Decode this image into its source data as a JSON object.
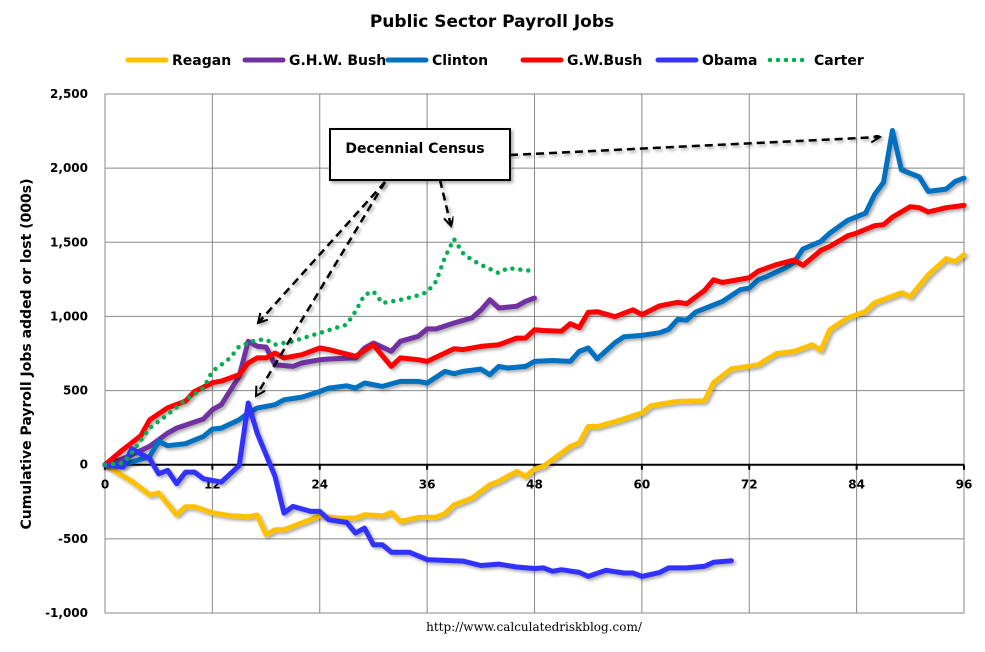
{
  "chart_data": {
    "type": "line",
    "title": "Public Sector Payroll Jobs",
    "xlabel": "",
    "ylabel": "Cumulative Payroll Jobs added or lost (000s)",
    "xlim": [
      0,
      96
    ],
    "ylim": [
      -1000,
      2500
    ],
    "x_ticks": [
      "0",
      "12",
      "24",
      "36",
      "48",
      "60",
      "72",
      "84",
      "96"
    ],
    "y_ticks": [
      "-1,000",
      "-500",
      "0",
      "500",
      "1,000",
      "1,500",
      "2,000",
      "2,500"
    ],
    "grid": true,
    "legend_position": "top",
    "annotation": "Decennial Census",
    "source": "http://www.calculatedriskblog.com/",
    "series": [
      {
        "name": "Reagan",
        "color": "#FFC000",
        "style": "solid",
        "points": [
          [
            0,
            0
          ],
          [
            3,
            -112
          ],
          [
            5,
            -202
          ],
          [
            6,
            -190
          ],
          [
            8,
            -337
          ],
          [
            9,
            -283
          ],
          [
            10,
            -283
          ],
          [
            12,
            -324
          ],
          [
            14,
            -344
          ],
          [
            16,
            -350
          ],
          [
            17,
            -340
          ],
          [
            18,
            -472
          ],
          [
            19,
            -438
          ],
          [
            20,
            -438
          ],
          [
            22,
            -391
          ],
          [
            23,
            -369
          ],
          [
            24,
            -344
          ],
          [
            26,
            -360
          ],
          [
            28,
            -360
          ],
          [
            29,
            -338
          ],
          [
            31,
            -345
          ],
          [
            32,
            -322
          ],
          [
            33,
            -382
          ],
          [
            35,
            -355
          ],
          [
            37,
            -353
          ],
          [
            38,
            -330
          ],
          [
            39,
            -270
          ],
          [
            41,
            -225
          ],
          [
            43,
            -135
          ],
          [
            44,
            -112
          ],
          [
            46,
            -45
          ],
          [
            47,
            -79
          ],
          [
            48,
            -29
          ],
          [
            49,
            -11
          ],
          [
            50,
            34
          ],
          [
            52,
            123
          ],
          [
            53,
            148
          ],
          [
            54,
            258
          ],
          [
            55,
            258
          ],
          [
            57,
            290
          ],
          [
            60,
            349
          ],
          [
            61,
            398
          ],
          [
            64,
            427
          ],
          [
            67,
            431
          ],
          [
            68,
            553
          ],
          [
            70,
            647
          ],
          [
            73,
            674
          ],
          [
            75,
            749
          ],
          [
            77,
            764
          ],
          [
            79,
            809
          ],
          [
            80,
            771
          ],
          [
            81,
            910
          ],
          [
            83,
            991
          ],
          [
            85,
            1034
          ],
          [
            86,
            1092
          ],
          [
            89,
            1160
          ],
          [
            90,
            1133
          ],
          [
            92,
            1281
          ],
          [
            94,
            1389
          ],
          [
            95,
            1370
          ],
          [
            96,
            1416
          ]
        ]
      },
      {
        "name": "G.H.W. Bush",
        "color": "#7030A0",
        "style": "solid",
        "points": [
          [
            0,
            0
          ],
          [
            2,
            40
          ],
          [
            5,
            124
          ],
          [
            7,
            213
          ],
          [
            8,
            247
          ],
          [
            11,
            308
          ],
          [
            12,
            371
          ],
          [
            13,
            405
          ],
          [
            15,
            596
          ],
          [
            16,
            832
          ],
          [
            17,
            799
          ],
          [
            18,
            793
          ],
          [
            19,
            674
          ],
          [
            21,
            663
          ],
          [
            22,
            686
          ],
          [
            24,
            708
          ],
          [
            25,
            713
          ],
          [
            28,
            720
          ],
          [
            29,
            787
          ],
          [
            30,
            821
          ],
          [
            32,
            765
          ],
          [
            33,
            832
          ],
          [
            35,
            866
          ],
          [
            36,
            916
          ],
          [
            37,
            916
          ],
          [
            39,
            956
          ],
          [
            41,
            990
          ],
          [
            42,
            1042
          ],
          [
            43,
            1113
          ],
          [
            44,
            1057
          ],
          [
            46,
            1068
          ],
          [
            47,
            1102
          ],
          [
            48,
            1124
          ]
        ]
      },
      {
        "name": "Clinton",
        "color": "#0070C0",
        "style": "solid",
        "points": [
          [
            0,
            0
          ],
          [
            2,
            0
          ],
          [
            5,
            56
          ],
          [
            6,
            157
          ],
          [
            7,
            128
          ],
          [
            9,
            142
          ],
          [
            11,
            191
          ],
          [
            12,
            240
          ],
          [
            13,
            247
          ],
          [
            15,
            303
          ],
          [
            16,
            348
          ],
          [
            17,
            382
          ],
          [
            19,
            405
          ],
          [
            20,
            438
          ],
          [
            22,
            456
          ],
          [
            24,
            494
          ],
          [
            25,
            517
          ],
          [
            27,
            532
          ],
          [
            28,
            517
          ],
          [
            29,
            551
          ],
          [
            31,
            528
          ],
          [
            33,
            562
          ],
          [
            35,
            562
          ],
          [
            36,
            551
          ],
          [
            38,
            629
          ],
          [
            39,
            614
          ],
          [
            40,
            629
          ],
          [
            42,
            645
          ],
          [
            43,
            607
          ],
          [
            44,
            663
          ],
          [
            45,
            652
          ],
          [
            47,
            663
          ],
          [
            48,
            697
          ],
          [
            50,
            703
          ],
          [
            52,
            697
          ],
          [
            53,
            764
          ],
          [
            54,
            787
          ],
          [
            55,
            714
          ],
          [
            57,
            823
          ],
          [
            58,
            863
          ],
          [
            60,
            872
          ],
          [
            62,
            890
          ],
          [
            63,
            913
          ],
          [
            64,
            980
          ],
          [
            65,
            975
          ],
          [
            66,
            1029
          ],
          [
            69,
            1101
          ],
          [
            71,
            1180
          ],
          [
            72,
            1191
          ],
          [
            73,
            1247
          ],
          [
            74,
            1270
          ],
          [
            76,
            1326
          ],
          [
            77,
            1364
          ],
          [
            78,
            1455
          ],
          [
            80,
            1506
          ],
          [
            81,
            1562
          ],
          [
            83,
            1648
          ],
          [
            85,
            1697
          ],
          [
            86,
            1821
          ],
          [
            87,
            1904
          ],
          [
            88,
            2254
          ],
          [
            89,
            1989
          ],
          [
            91,
            1940
          ],
          [
            92,
            1843
          ],
          [
            94,
            1859
          ],
          [
            95,
            1910
          ],
          [
            96,
            1933
          ]
        ]
      },
      {
        "name": "G.W.Bush",
        "color": "#FF0000",
        "style": "solid",
        "points": [
          [
            0,
            0
          ],
          [
            2,
            101
          ],
          [
            4,
            196
          ],
          [
            5,
            303
          ],
          [
            7,
            384
          ],
          [
            9,
            429
          ],
          [
            10,
            494
          ],
          [
            12,
            553
          ],
          [
            13,
            564
          ],
          [
            15,
            607
          ],
          [
            16,
            686
          ],
          [
            17,
            720
          ],
          [
            18,
            720
          ],
          [
            19,
            753
          ],
          [
            20,
            720
          ],
          [
            22,
            742
          ],
          [
            24,
            787
          ],
          [
            25,
            776
          ],
          [
            28,
            731
          ],
          [
            30,
            809
          ],
          [
            32,
            663
          ],
          [
            33,
            720
          ],
          [
            35,
            708
          ],
          [
            36,
            697
          ],
          [
            39,
            782
          ],
          [
            40,
            776
          ],
          [
            42,
            798
          ],
          [
            44,
            809
          ],
          [
            46,
            854
          ],
          [
            47,
            854
          ],
          [
            48,
            910
          ],
          [
            49,
            905
          ],
          [
            51,
            900
          ],
          [
            52,
            951
          ],
          [
            53,
            924
          ],
          [
            54,
            1027
          ],
          [
            55,
            1032
          ],
          [
            57,
            998
          ],
          [
            59,
            1045
          ],
          [
            60,
            1012
          ],
          [
            62,
            1072
          ],
          [
            64,
            1095
          ],
          [
            65,
            1086
          ],
          [
            67,
            1175
          ],
          [
            68,
            1247
          ],
          [
            69,
            1229
          ],
          [
            72,
            1261
          ],
          [
            73,
            1306
          ],
          [
            75,
            1349
          ],
          [
            77,
            1380
          ],
          [
            78,
            1344
          ],
          [
            80,
            1445
          ],
          [
            81,
            1472
          ],
          [
            83,
            1544
          ],
          [
            84,
            1562
          ],
          [
            86,
            1612
          ],
          [
            87,
            1619
          ],
          [
            88,
            1670
          ],
          [
            90,
            1740
          ],
          [
            91,
            1733
          ],
          [
            92,
            1704
          ],
          [
            94,
            1733
          ],
          [
            96,
            1749
          ]
        ]
      },
      {
        "name": "Obama",
        "color": "#3333FF",
        "style": "solid",
        "points": [
          [
            0,
            0
          ],
          [
            2,
            -16
          ],
          [
            3,
            108
          ],
          [
            5,
            40
          ],
          [
            6,
            -61
          ],
          [
            7,
            -38
          ],
          [
            8,
            -128
          ],
          [
            9,
            -50
          ],
          [
            10,
            -50
          ],
          [
            11,
            -95
          ],
          [
            13,
            -117
          ],
          [
            15,
            -5
          ],
          [
            16,
            416
          ],
          [
            17,
            214
          ],
          [
            19,
            -78
          ],
          [
            20,
            -326
          ],
          [
            21,
            -281
          ],
          [
            23,
            -315
          ],
          [
            24,
            -315
          ],
          [
            25,
            -371
          ],
          [
            27,
            -389
          ],
          [
            28,
            -461
          ],
          [
            29,
            -427
          ],
          [
            30,
            -540
          ],
          [
            31,
            -540
          ],
          [
            32,
            -590
          ],
          [
            34,
            -590
          ],
          [
            36,
            -640
          ],
          [
            38,
            -645
          ],
          [
            40,
            -650
          ],
          [
            42,
            -680
          ],
          [
            44,
            -670
          ],
          [
            46,
            -690
          ],
          [
            48,
            -700
          ],
          [
            49,
            -696
          ],
          [
            50,
            -719
          ],
          [
            51,
            -708
          ],
          [
            53,
            -726
          ],
          [
            54,
            -753
          ],
          [
            56,
            -712
          ],
          [
            58,
            -730
          ],
          [
            59,
            -730
          ],
          [
            60,
            -753
          ],
          [
            62,
            -726
          ],
          [
            63,
            -696
          ],
          [
            65,
            -696
          ],
          [
            67,
            -685
          ],
          [
            68,
            -658
          ],
          [
            70,
            -647
          ]
        ]
      },
      {
        "name": "Carter",
        "color": "#00B050",
        "style": "dotted",
        "points": [
          [
            0,
            0
          ],
          [
            2,
            11
          ],
          [
            3,
            79
          ],
          [
            5,
            247
          ],
          [
            7,
            337
          ],
          [
            9,
            438
          ],
          [
            11,
            517
          ],
          [
            12,
            630
          ],
          [
            14,
            720
          ],
          [
            15,
            798
          ],
          [
            17,
            843
          ],
          [
            18,
            843
          ],
          [
            19,
            810
          ],
          [
            21,
            832
          ],
          [
            24,
            888
          ],
          [
            26,
            926
          ],
          [
            27,
            944
          ],
          [
            28,
            1034
          ],
          [
            29,
            1146
          ],
          [
            30,
            1169
          ],
          [
            31,
            1090
          ],
          [
            33,
            1112
          ],
          [
            35,
            1142
          ],
          [
            36,
            1164
          ],
          [
            37,
            1236
          ],
          [
            38,
            1400
          ],
          [
            39,
            1522
          ],
          [
            40,
            1427
          ],
          [
            41,
            1382
          ],
          [
            42,
            1349
          ],
          [
            44,
            1292
          ],
          [
            45,
            1326
          ],
          [
            48,
            1304
          ]
        ]
      }
    ]
  }
}
